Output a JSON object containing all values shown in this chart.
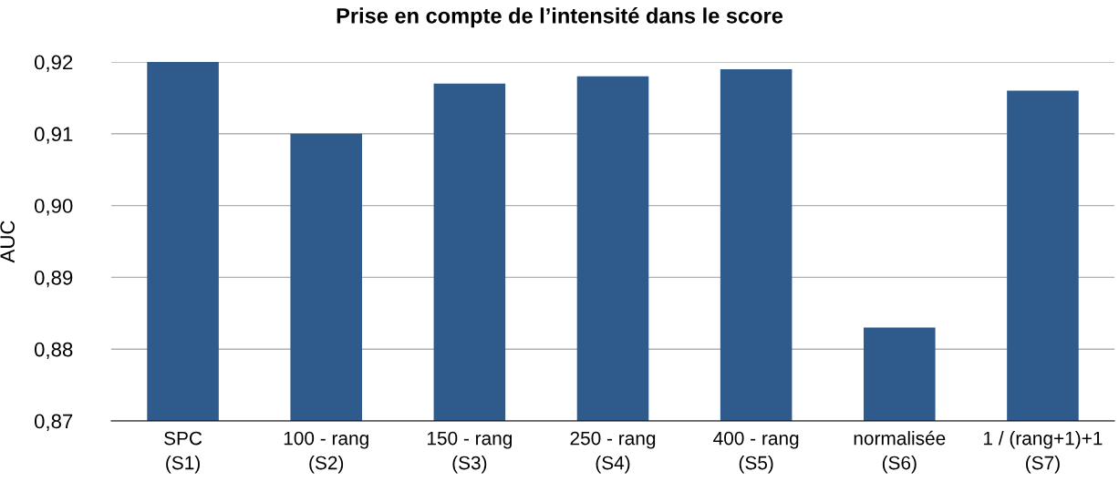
{
  "chart_data": {
    "type": "bar",
    "title": "Prise en compte de l’intensité dans le score",
    "ylabel": "AUC",
    "categories": [
      "SPC\n(S1)",
      "100 - rang\n(S2)",
      "150 - rang\n(S3)",
      "250 - rang\n(S4)",
      "400 - rang\n(S5)",
      "normalisée\n(S6)",
      "1 / (rang+1)+1\n(S7)"
    ],
    "values": [
      0.92,
      0.91,
      0.917,
      0.918,
      0.919,
      0.883,
      0.916
    ],
    "color": "#2f5a8c",
    "ylim": [
      0.87,
      0.92
    ],
    "yticks": [
      {
        "value": 0.87,
        "label": "0,87"
      },
      {
        "value": 0.88,
        "label": "0,88"
      },
      {
        "value": 0.89,
        "label": "0,89"
      },
      {
        "value": 0.9,
        "label": "0,90"
      },
      {
        "value": 0.91,
        "label": "0,91"
      },
      {
        "value": 0.92,
        "label": "0,92"
      }
    ],
    "grid": "y",
    "legend": false
  }
}
